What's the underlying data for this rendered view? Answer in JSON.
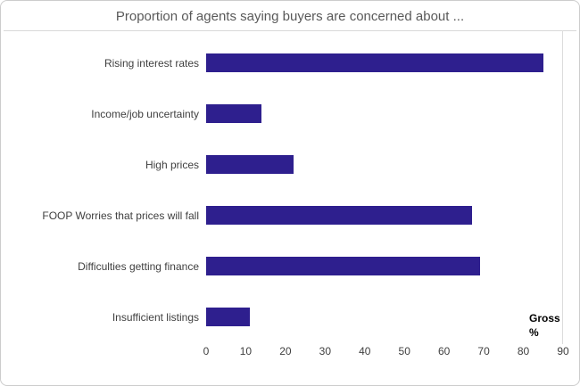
{
  "title": "Proportion of agents saying buyers are concerned about ...",
  "annotation": {
    "line1": "Gross",
    "line2": "%"
  },
  "colors": {
    "bar": "#2e1f8e",
    "frame_border": "#cccccc",
    "divider": "#d9d9d9",
    "title_text": "#595959",
    "label_text": "#404040"
  },
  "chart_data": {
    "type": "bar",
    "orientation": "horizontal",
    "title": "Proportion of agents saying buyers are concerned about ...",
    "categories": [
      "Rising interest rates",
      "Income/job uncertainty",
      "High prices",
      "FOOP Worries that prices will fall",
      "Difficulties getting finance",
      "Insufficient listings"
    ],
    "values": [
      85,
      14,
      22,
      67,
      69,
      11
    ],
    "xlabel": "Gross %",
    "ylabel": "",
    "xlim": [
      0,
      90
    ],
    "xticks": [
      0,
      10,
      20,
      30,
      40,
      50,
      60,
      70,
      80,
      90
    ],
    "grid": false,
    "legend": "none"
  }
}
